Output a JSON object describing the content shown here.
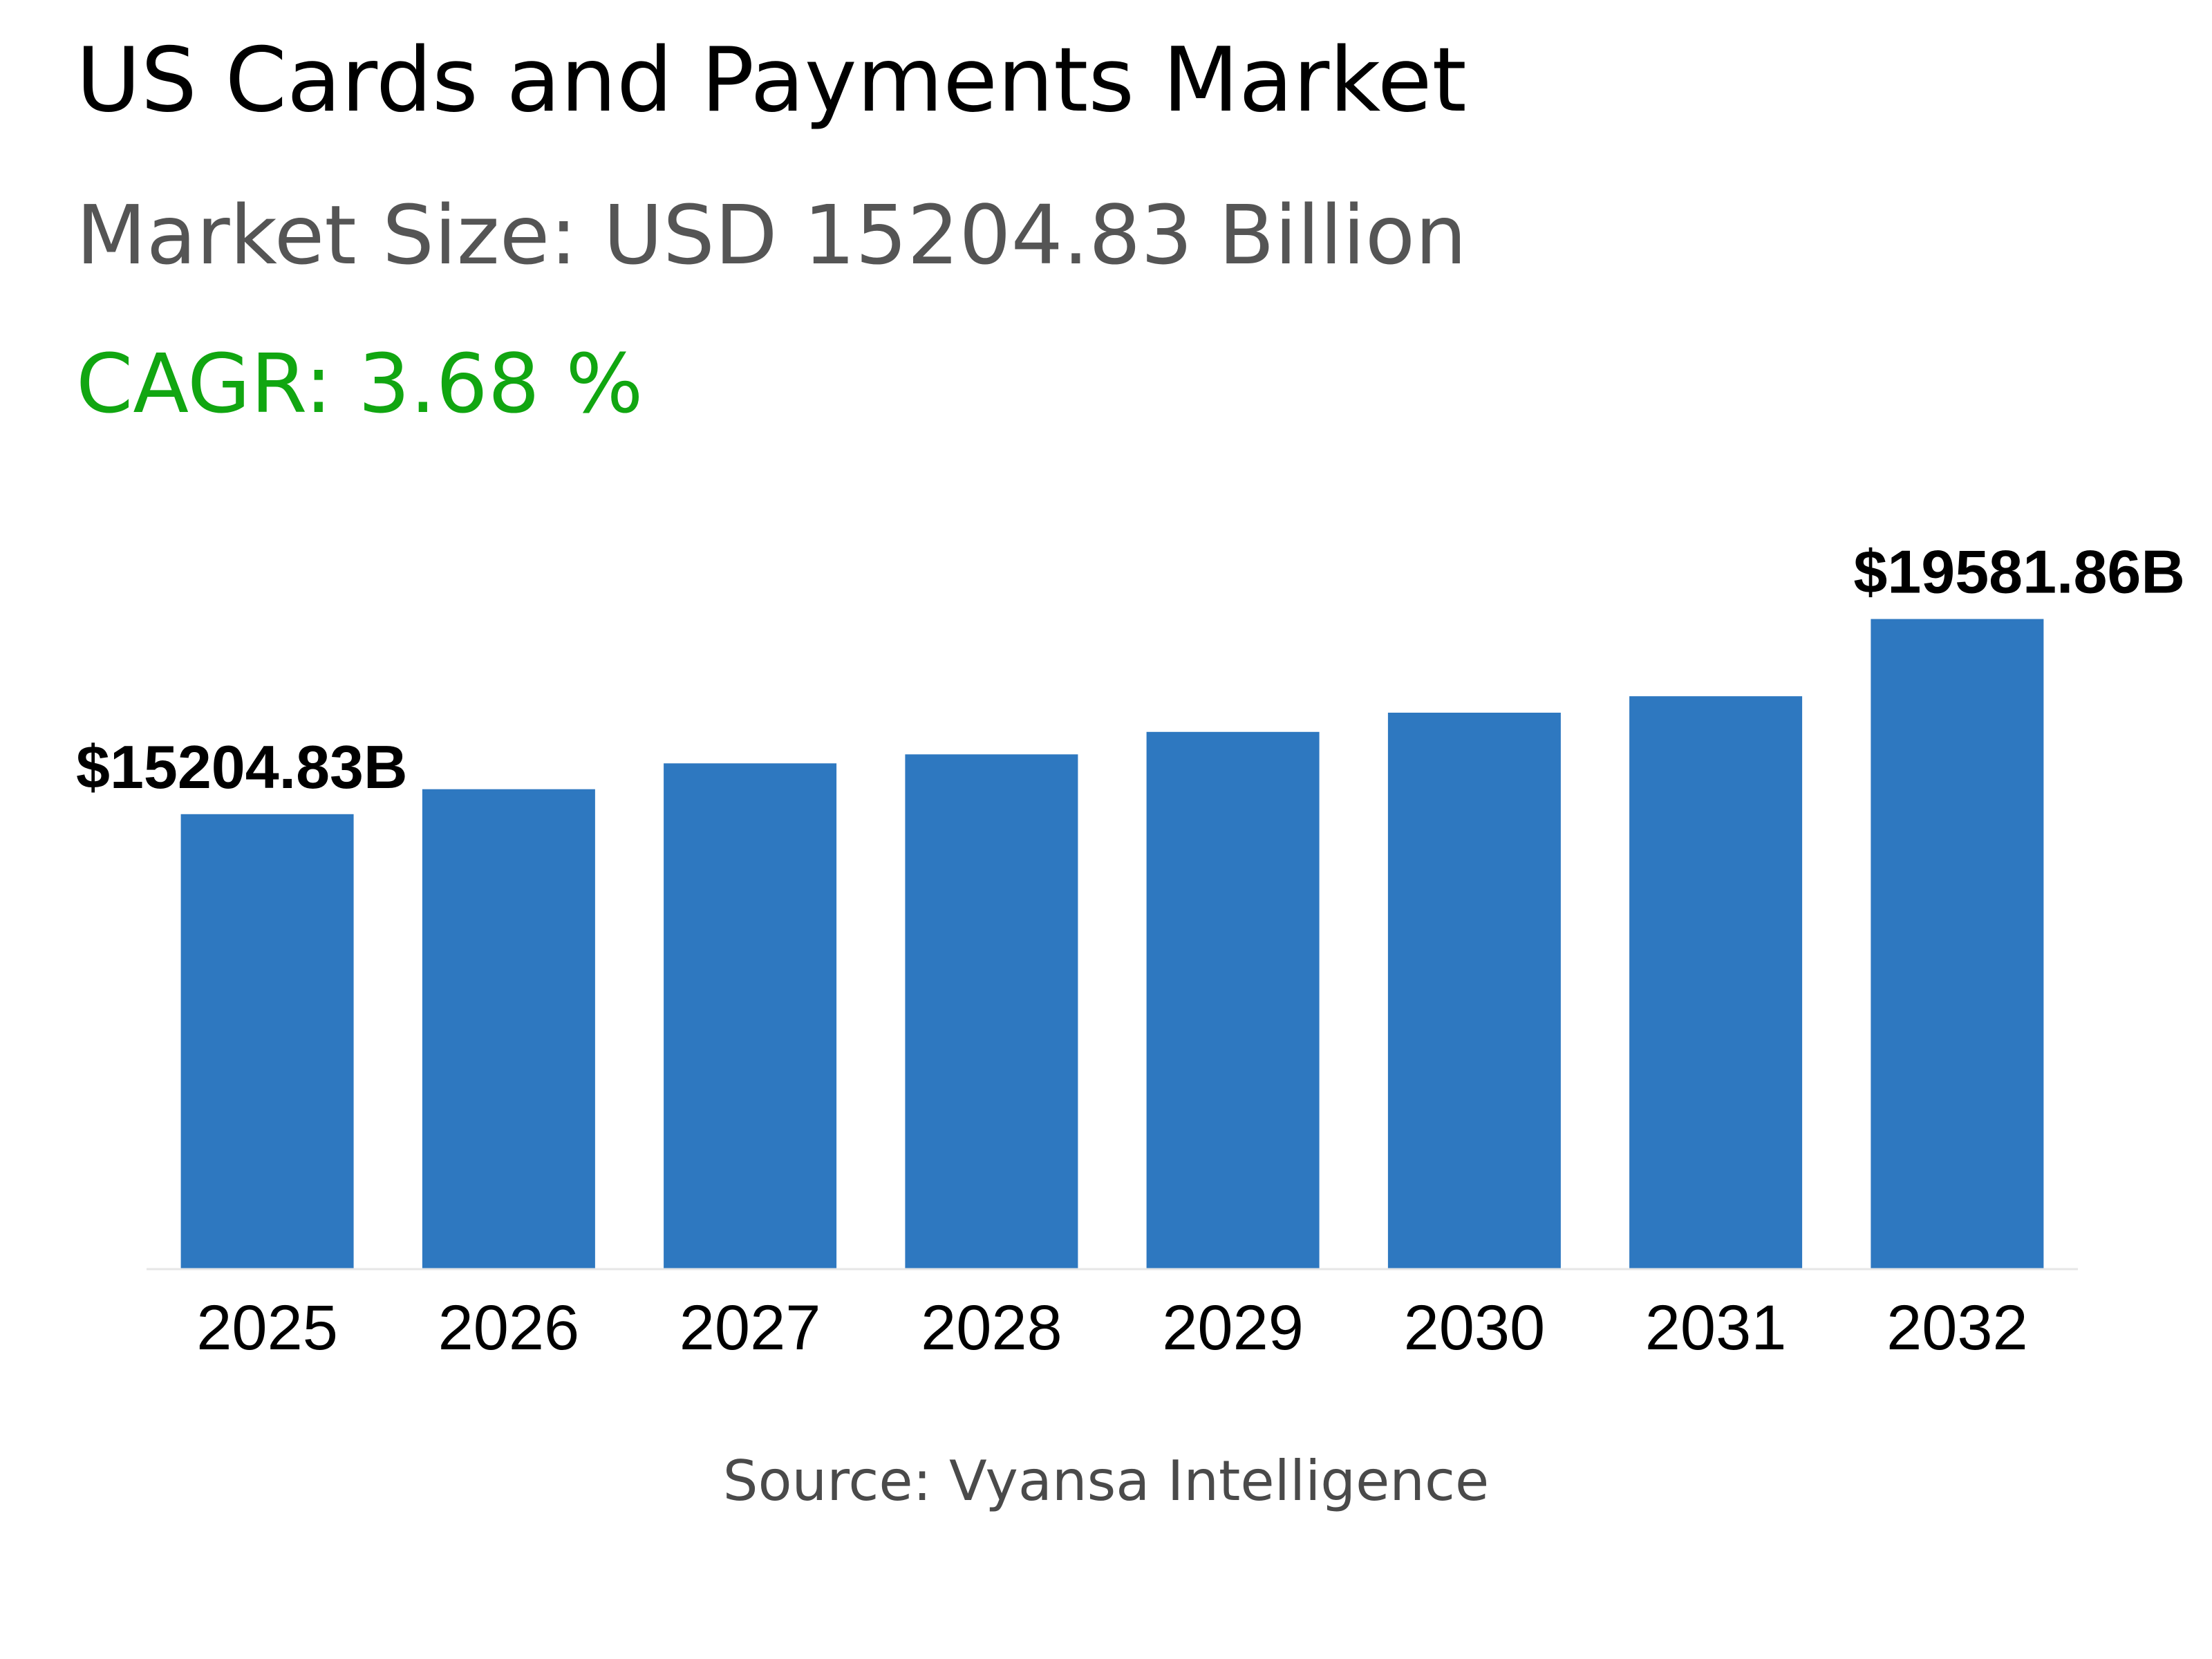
{
  "header": {
    "title": "US Cards and Payments Market",
    "market_size": "Market Size: USD 15204.83 Billion",
    "cagr": "CAGR: 3.68 %"
  },
  "footer": {
    "source": "Source: Vyansa Intelligence"
  },
  "colors": {
    "bar": "#2e78c0",
    "title": "#000000",
    "subtitle": "#555555",
    "cagr": "#11a611",
    "source": "#4a4a4a",
    "axis": "#e6e6e6"
  },
  "chart_data": {
    "type": "bar",
    "title": "US Cards and Payments Market",
    "xlabel": "",
    "ylabel": "",
    "categories": [
      "2025",
      "2026",
      "2027",
      "2028",
      "2029",
      "2030",
      "2031",
      "2032"
    ],
    "series": [
      {
        "values": [
          15204.83,
          15764.36,
          16344.48,
          16545.0,
          17050.0,
          17480.0,
          17850.0,
          19581.86
        ]
      }
    ],
    "data_labels": [
      {
        "category": "2025",
        "text": "$15204.83B"
      },
      {
        "category": "2032",
        "text": "$19581.86B"
      }
    ],
    "ylim": [
      5000,
      20000
    ],
    "grid": false,
    "legend": "none"
  }
}
